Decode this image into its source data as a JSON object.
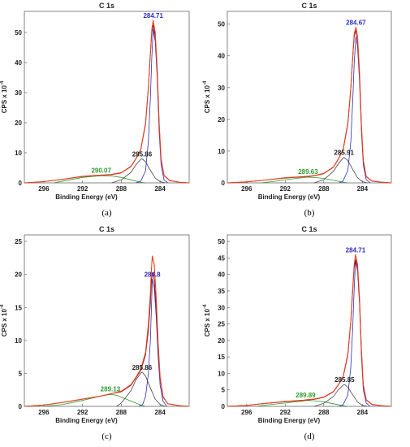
{
  "chart_data": [
    {
      "label": "(a)",
      "type": "line",
      "title": "C 1s",
      "xlabel": "Binding Energy (eV)",
      "ylabel": "CPS x 10",
      "ylabel_exponent": "-4",
      "x_reversed": true,
      "xlim": [
        298,
        281
      ],
      "ylim": [
        0,
        57
      ],
      "xticks": [
        296,
        292,
        288,
        284
      ],
      "yticks": [
        0,
        10,
        20,
        30,
        40,
        50
      ],
      "series": [
        {
          "name": "",
          "color": "#e8401f",
          "x": [
            298,
            296,
            294,
            292,
            290.07,
            289,
            288,
            287,
            286.5,
            286,
            285.5,
            285.2,
            285,
            284.85,
            284.71,
            284.5,
            284.3,
            284.1,
            283.9,
            283.6,
            283,
            282,
            281
          ],
          "y": [
            0,
            0.4,
            1.2,
            2.2,
            2.6,
            2.8,
            3.4,
            5.5,
            8,
            11,
            20,
            32,
            43,
            51,
            54,
            50,
            38,
            20,
            8,
            2.5,
            0.8,
            0.2,
            0
          ]
        },
        {
          "name": "",
          "color": "#8b0000",
          "x": [
            298,
            296,
            294,
            292,
            290.07,
            289,
            288,
            287,
            286.5,
            286,
            285.5,
            285.2,
            285,
            284.85,
            284.71,
            284.5,
            284.3,
            284.1,
            283.9,
            283.6,
            283,
            282,
            281
          ],
          "y": [
            0,
            0.4,
            1.2,
            2.1,
            2.5,
            2.7,
            3.3,
            5.4,
            7.9,
            10.8,
            19.5,
            31.5,
            42.5,
            50,
            52.5,
            48.5,
            37,
            19.5,
            7.8,
            2.4,
            0.7,
            0.2,
            0
          ]
        },
        {
          "name": "",
          "color": "#2d2dbf",
          "x": [
            286.5,
            286,
            285.5,
            285.2,
            285,
            284.85,
            284.71,
            284.5,
            284.3,
            284.1,
            283.9,
            283.6,
            283.2
          ],
          "y": [
            0,
            0.5,
            4,
            14,
            28,
            42,
            51,
            47,
            35,
            17,
            6,
            1,
            0
          ]
        },
        {
          "name": "",
          "color": "#444444",
          "x": [
            289,
            288,
            287,
            286.5,
            286,
            285.86,
            285.5,
            285,
            284.5,
            284,
            283.5
          ],
          "y": [
            0,
            1,
            3.5,
            6,
            7.8,
            8,
            7,
            4.2,
            1.6,
            0.4,
            0
          ]
        },
        {
          "name": "",
          "color": "#2e9a2e",
          "x": [
            295,
            294,
            292,
            290.07,
            289,
            288,
            287,
            286,
            285.5
          ],
          "y": [
            0,
            0.6,
            1.8,
            2.4,
            2.3,
            1.8,
            1,
            0.2,
            0
          ]
        }
      ],
      "annotations": [
        {
          "text": "284.71",
          "x": 284.71,
          "y": 54,
          "color": "#2d2dbf"
        },
        {
          "text": "285.86",
          "x": 285.86,
          "y": 8,
          "color": "#222222"
        },
        {
          "text": "290.07",
          "x": 290.07,
          "y": 2.6,
          "color": "#2e9a2e"
        }
      ]
    },
    {
      "label": "(b)",
      "type": "line",
      "title": "C 1s",
      "xlabel": "Binding Energy (eV)",
      "ylabel": "CPS x 10",
      "ylabel_exponent": "-4",
      "x_reversed": true,
      "xlim": [
        298,
        281
      ],
      "ylim": [
        0,
        54
      ],
      "xticks": [
        296,
        292,
        288,
        284
      ],
      "yticks": [
        0,
        10,
        20,
        30,
        40,
        50
      ],
      "series": [
        {
          "name": "",
          "color": "#e8401f",
          "x": [
            298,
            296,
            294,
            292,
            290,
            289.63,
            289,
            288,
            287,
            286.5,
            286,
            285.5,
            285.2,
            285,
            284.85,
            284.67,
            284.5,
            284.3,
            284.1,
            283.9,
            283.6,
            283,
            282,
            281
          ],
          "y": [
            0,
            0.3,
            0.9,
            1.6,
            2,
            2.1,
            2.3,
            3,
            5,
            7.5,
            10.5,
            19,
            30,
            40,
            47,
            49,
            46,
            35,
            18,
            7,
            2,
            0.6,
            0.2,
            0
          ]
        },
        {
          "name": "",
          "color": "#8b0000",
          "x": [
            298,
            296,
            294,
            292,
            290,
            289.63,
            289,
            288,
            287,
            286.5,
            286,
            285.5,
            285.2,
            285,
            284.85,
            284.67,
            284.5,
            284.3,
            284.1,
            283.9,
            283.6,
            283,
            282,
            281
          ],
          "y": [
            0,
            0.3,
            0.9,
            1.5,
            1.9,
            2,
            2.2,
            2.9,
            4.9,
            7.4,
            10.3,
            18.5,
            29.5,
            39.5,
            46,
            48,
            45,
            34.5,
            17.5,
            6.8,
            1.9,
            0.5,
            0.2,
            0
          ]
        },
        {
          "name": "",
          "color": "#2d2dbf",
          "x": [
            286.4,
            286,
            285.5,
            285.2,
            285,
            284.85,
            284.67,
            284.5,
            284.3,
            284.1,
            283.9,
            283.6,
            283.2
          ],
          "y": [
            0,
            0.6,
            4,
            13,
            26,
            38,
            46,
            43,
            32,
            16,
            5.5,
            1,
            0
          ]
        },
        {
          "name": "",
          "color": "#444444",
          "x": [
            289,
            288,
            287,
            286.5,
            286,
            285.91,
            285.5,
            285,
            284.5,
            284,
            283.5
          ],
          "y": [
            0,
            1,
            3.6,
            6,
            7.8,
            8,
            7,
            4.2,
            1.6,
            0.4,
            0
          ]
        },
        {
          "name": "",
          "color": "#2e9a2e",
          "x": [
            294.5,
            293,
            292,
            290,
            289.63,
            289,
            288,
            287,
            286,
            285.5
          ],
          "y": [
            0,
            0.5,
            1,
            1.7,
            1.8,
            1.7,
            1.4,
            0.8,
            0.2,
            0
          ]
        }
      ],
      "annotations": [
        {
          "text": "284.67",
          "x": 284.67,
          "y": 49,
          "color": "#2d2dbf"
        },
        {
          "text": "285.91",
          "x": 285.91,
          "y": 8,
          "color": "#222222"
        },
        {
          "text": "289.63",
          "x": 289.63,
          "y": 2.1,
          "color": "#2e9a2e"
        }
      ]
    },
    {
      "label": "(c)",
      "type": "line",
      "title": "C 1s",
      "xlabel": "Binding Energy (eV)",
      "ylabel": "CPS x 10",
      "ylabel_exponent": "-4",
      "x_reversed": true,
      "xlim": [
        298,
        281
      ],
      "ylim": [
        0,
        26
      ],
      "xticks": [
        296,
        292,
        288,
        284
      ],
      "yticks": [
        0,
        5,
        10,
        15,
        20,
        25
      ],
      "series": [
        {
          "name": "",
          "color": "#e8401f",
          "x": [
            298,
            296,
            294,
            292,
            290,
            289.13,
            288,
            287,
            286.5,
            286,
            285.5,
            285.2,
            285,
            284.9,
            284.8,
            284.6,
            284.4,
            284.2,
            284,
            283.7,
            283.2,
            282,
            281
          ],
          "y": [
            0,
            0.2,
            0.6,
            1.1,
            1.6,
            1.9,
            2.3,
            3.3,
            4.4,
            5.6,
            8.2,
            12.5,
            17,
            20.5,
            22.8,
            21.5,
            16.5,
            9.5,
            4.5,
            1.5,
            0.4,
            0.1,
            0
          ]
        },
        {
          "name": "",
          "color": "#8b0000",
          "x": [
            298,
            296,
            294,
            292,
            290,
            289.13,
            288,
            287,
            286.5,
            286,
            285.5,
            285.2,
            285,
            284.9,
            284.8,
            284.6,
            284.4,
            284.2,
            284,
            283.7,
            283.2,
            282,
            281
          ],
          "y": [
            0,
            0.2,
            0.6,
            1.1,
            1.6,
            1.9,
            2.2,
            3.2,
            4.3,
            5.4,
            7.8,
            11.5,
            15.5,
            18.5,
            20.3,
            19.2,
            15,
            8.8,
            4.2,
            1.4,
            0.4,
            0.1,
            0
          ]
        },
        {
          "name": "",
          "color": "#2d2dbf",
          "x": [
            286.2,
            285.8,
            285.5,
            285.2,
            285,
            284.9,
            284.8,
            284.6,
            284.4,
            284.2,
            284,
            283.7,
            283.3
          ],
          "y": [
            0,
            0.3,
            1.5,
            5,
            10,
            14.5,
            19.3,
            18,
            13.5,
            7.5,
            3.2,
            0.8,
            0
          ]
        },
        {
          "name": "",
          "color": "#444444",
          "x": [
            288.5,
            288,
            287,
            286.5,
            286,
            285.86,
            285.5,
            285,
            284.5,
            284,
            283.5
          ],
          "y": [
            0,
            0.5,
            2.4,
            4,
            5,
            5.2,
            4.6,
            2.8,
            1.1,
            0.3,
            0
          ]
        },
        {
          "name": "",
          "color": "#2e9a2e",
          "x": [
            296,
            294,
            292,
            290,
            289.13,
            288.5,
            288,
            287,
            286,
            285.5
          ],
          "y": [
            0,
            0.3,
            0.9,
            1.6,
            1.8,
            1.7,
            1.4,
            0.8,
            0.2,
            0
          ]
        }
      ],
      "annotations": [
        {
          "text": "284.8",
          "x": 284.8,
          "y": 19.3,
          "color": "#2d2dbf"
        },
        {
          "text": "285.86",
          "x": 285.86,
          "y": 5.2,
          "color": "#222222"
        },
        {
          "text": "289.13",
          "x": 289.13,
          "y": 1.9,
          "color": "#2e9a2e"
        }
      ]
    },
    {
      "label": "(d)",
      "type": "line",
      "title": "C 1s",
      "xlabel": "Binding Energy (eV)",
      "ylabel": "CPS x 10",
      "ylabel_exponent": "-4",
      "x_reversed": true,
      "xlim": [
        298,
        281
      ],
      "ylim": [
        0,
        52
      ],
      "xticks": [
        296,
        292,
        288,
        284
      ],
      "yticks": [
        0,
        5,
        10,
        15,
        20,
        25,
        30,
        35,
        40,
        45,
        50
      ],
      "series": [
        {
          "name": "",
          "color": "#e8401f",
          "x": [
            298,
            296,
            294,
            292,
            290,
            289.89,
            289,
            288,
            287,
            286.5,
            286,
            285.5,
            285.2,
            285,
            284.85,
            284.71,
            284.5,
            284.3,
            284.1,
            283.9,
            283.6,
            283,
            282,
            281
          ],
          "y": [
            0,
            0.3,
            0.9,
            1.5,
            1.9,
            2,
            2.2,
            2.8,
            4.5,
            6.5,
            9,
            16,
            26,
            36,
            43,
            46,
            43,
            33,
            17,
            6.5,
            2,
            0.6,
            0.2,
            0
          ]
        },
        {
          "name": "",
          "color": "#8b0000",
          "x": [
            298,
            296,
            294,
            292,
            290,
            289.89,
            289,
            288,
            287,
            286.5,
            286,
            285.5,
            285.2,
            285,
            284.85,
            284.71,
            284.5,
            284.3,
            284.1,
            283.9,
            283.6,
            283,
            282,
            281
          ],
          "y": [
            0,
            0.3,
            0.9,
            1.4,
            1.8,
            1.9,
            2.1,
            2.7,
            4.4,
            6.4,
            8.8,
            15.5,
            25.5,
            35,
            42,
            44.5,
            42,
            32,
            16.5,
            6.3,
            1.9,
            0.5,
            0.2,
            0
          ]
        },
        {
          "name": "",
          "color": "#2d2dbf",
          "x": [
            286.4,
            286,
            285.5,
            285.2,
            285,
            284.85,
            284.71,
            284.5,
            284.3,
            284.1,
            283.9,
            283.6,
            283.2
          ],
          "y": [
            0,
            0.5,
            3.5,
            12,
            24,
            36,
            44,
            41,
            31,
            15,
            5,
            1,
            0
          ]
        },
        {
          "name": "",
          "color": "#444444",
          "x": [
            289,
            288,
            287,
            286.5,
            286,
            285.85,
            285.5,
            285,
            284.5,
            284,
            283.5
          ],
          "y": [
            0,
            0.9,
            3,
            5,
            6.4,
            6.6,
            5.8,
            3.5,
            1.3,
            0.3,
            0
          ]
        },
        {
          "name": "",
          "color": "#2e9a2e",
          "x": [
            295,
            294,
            292,
            290,
            289.89,
            289,
            288,
            287,
            286,
            285.5
          ],
          "y": [
            0,
            0.4,
            1,
            1.7,
            1.8,
            1.7,
            1.4,
            0.8,
            0.2,
            0
          ]
        }
      ],
      "annotations": [
        {
          "text": "284.71",
          "x": 284.71,
          "y": 46,
          "color": "#2d2dbf"
        },
        {
          "text": "285.85",
          "x": 285.85,
          "y": 6.6,
          "color": "#222222"
        },
        {
          "text": "289.89",
          "x": 289.89,
          "y": 2,
          "color": "#2e9a2e"
        }
      ]
    }
  ]
}
